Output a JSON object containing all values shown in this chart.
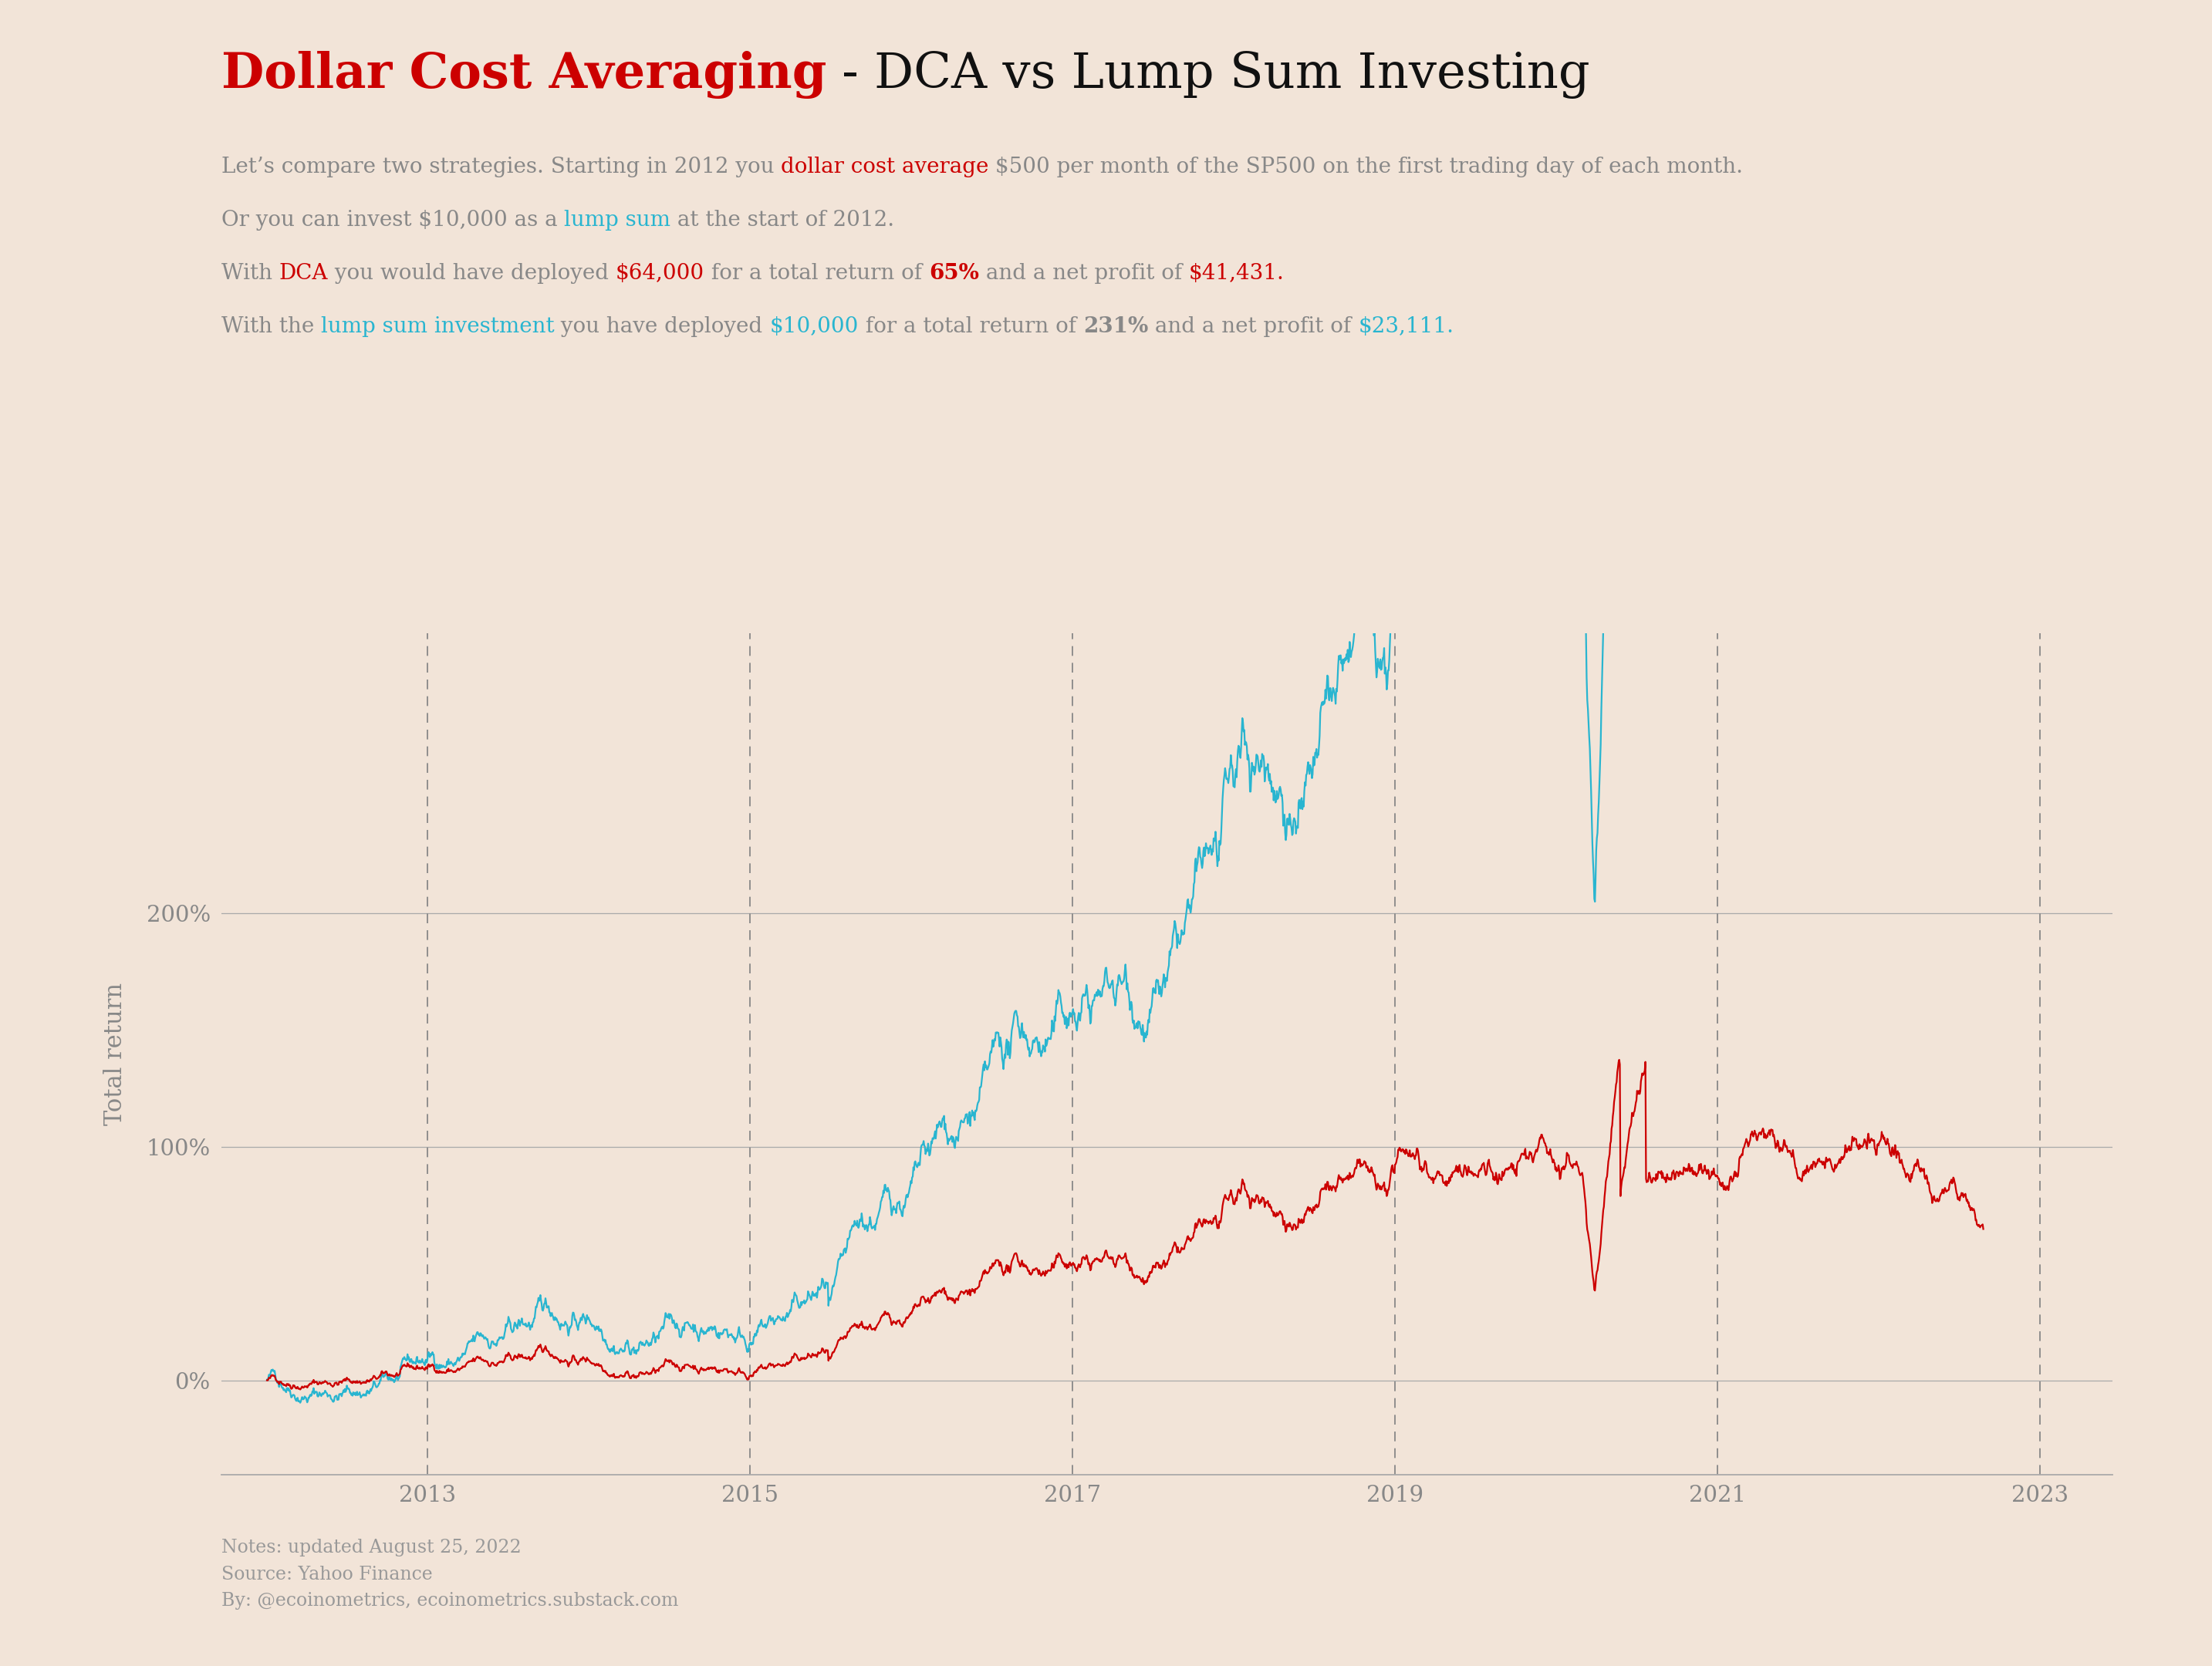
{
  "background_color": "#f2e4d8",
  "title_red_text": "Dollar Cost Averaging",
  "title_black_text": " - DCA vs Lump Sum Investing",
  "title_fontsize": 46,
  "subtitle_fontsize": 20,
  "ylabel": "Total return",
  "ylabel_fontsize": 22,
  "yticks": [
    0,
    100,
    200
  ],
  "ytick_labels": [
    "0%",
    "100%",
    "200%"
  ],
  "xtick_years": [
    2013,
    2015,
    2017,
    2019,
    2021,
    2023
  ],
  "dca_color": "#cc0000",
  "lump_color": "#29b5d0",
  "axis_text_color": "#888888",
  "notes_text": "Notes: updated August 25, 2022\nSource: Yahoo Finance\nBy: @ecoinometrics, ecoinometrics.substack.com",
  "notes_fontsize": 17,
  "notes_color": "#999999",
  "subtitle_lines": [
    [
      [
        "Let’s compare two strategies. Starting in 2012 you ",
        "#888888",
        false
      ],
      [
        "dollar cost average",
        "#cc0000",
        false
      ],
      [
        " $500 per month of the SP500 on the first trading day of each month.",
        "#888888",
        false
      ]
    ],
    [
      [
        "Or you can invest $10,000 as a ",
        "#888888",
        false
      ],
      [
        "lump sum",
        "#29b5d0",
        false
      ],
      [
        " at the start of 2012.",
        "#888888",
        false
      ]
    ],
    [
      [
        "With ",
        "#888888",
        false
      ],
      [
        "DCA",
        "#cc0000",
        false
      ],
      [
        " you would have deployed ",
        "#888888",
        false
      ],
      [
        "$64,000",
        "#cc0000",
        false
      ],
      [
        " for a total return of ",
        "#888888",
        false
      ],
      [
        "65%",
        "#cc0000",
        true
      ],
      [
        " and a net profit of ",
        "#888888",
        false
      ],
      [
        "$41,431.",
        "#cc0000",
        false
      ]
    ],
    [
      [
        "With the ",
        "#888888",
        false
      ],
      [
        "lump sum investment",
        "#29b5d0",
        false
      ],
      [
        " you have deployed ",
        "#888888",
        false
      ],
      [
        "$10,000",
        "#29b5d0",
        false
      ],
      [
        " for a total return of ",
        "#888888",
        false
      ],
      [
        "231%",
        "#888888",
        true
      ],
      [
        " and a net profit of ",
        "#888888",
        false
      ],
      [
        "$23,111.",
        "#29b5d0",
        false
      ]
    ]
  ]
}
